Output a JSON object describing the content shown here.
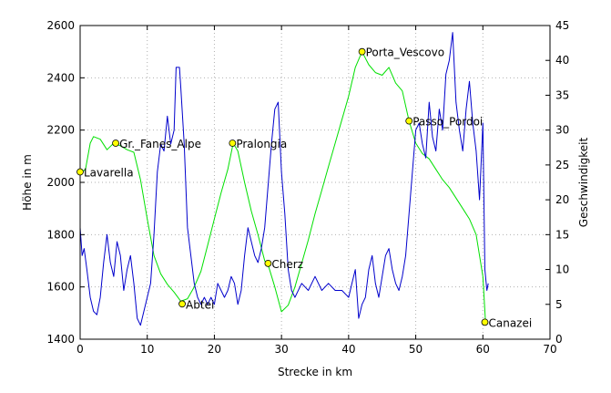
{
  "chart_data": {
    "type": "line",
    "xlabel": "Strecke in km",
    "ylabel_left": "Höhe in m",
    "ylabel_right": "Geschwindigkeit",
    "xlim": [
      0,
      70
    ],
    "ylim_left": [
      1400,
      2600
    ],
    "ylim_right": [
      0,
      45
    ],
    "x_ticks": [
      0,
      10,
      20,
      30,
      40,
      50,
      60,
      70
    ],
    "y_left_ticks": [
      1400,
      1600,
      1800,
      2000,
      2200,
      2400,
      2600
    ],
    "y_right_ticks": [
      0,
      5,
      10,
      15,
      20,
      25,
      30,
      35,
      40,
      45
    ],
    "grid": true,
    "colors": {
      "elevation": "#00e000",
      "speed": "#0000cc",
      "waypoint_fill": "#ffff00",
      "grid": "#b0b0b0"
    },
    "elevation_series": {
      "axis": "left",
      "points": [
        [
          0,
          2035
        ],
        [
          0.8,
          2050
        ],
        [
          1.5,
          2150
        ],
        [
          2,
          2175
        ],
        [
          3,
          2165
        ],
        [
          4,
          2125
        ],
        [
          5,
          2150
        ],
        [
          6,
          2140
        ],
        [
          7,
          2125
        ],
        [
          8,
          2115
        ],
        [
          9,
          2010
        ],
        [
          10,
          1860
        ],
        [
          11,
          1720
        ],
        [
          12,
          1650
        ],
        [
          13,
          1610
        ],
        [
          14,
          1580
        ],
        [
          15,
          1545
        ],
        [
          16,
          1555
        ],
        [
          17,
          1600
        ],
        [
          18,
          1660
        ],
        [
          19,
          1760
        ],
        [
          20,
          1860
        ],
        [
          21,
          1960
        ],
        [
          22,
          2050
        ],
        [
          22.8,
          2150
        ],
        [
          23.5,
          2120
        ],
        [
          24.5,
          2000
        ],
        [
          25.5,
          1890
        ],
        [
          26.5,
          1800
        ],
        [
          27.5,
          1700
        ],
        [
          28,
          1685
        ],
        [
          29,
          1600
        ],
        [
          30,
          1505
        ],
        [
          31,
          1530
        ],
        [
          32,
          1600
        ],
        [
          33,
          1690
        ],
        [
          34,
          1780
        ],
        [
          35,
          1880
        ],
        [
          36,
          1970
        ],
        [
          37,
          2060
        ],
        [
          38,
          2150
        ],
        [
          39,
          2240
        ],
        [
          40,
          2330
        ],
        [
          41,
          2440
        ],
        [
          42,
          2500
        ],
        [
          43,
          2450
        ],
        [
          44,
          2420
        ],
        [
          45,
          2410
        ],
        [
          46,
          2440
        ],
        [
          47,
          2380
        ],
        [
          48,
          2350
        ],
        [
          49,
          2235
        ],
        [
          50,
          2150
        ],
        [
          51,
          2110
        ],
        [
          52,
          2090
        ],
        [
          53,
          2050
        ],
        [
          54,
          2010
        ],
        [
          55,
          1980
        ],
        [
          56,
          1940
        ],
        [
          57,
          1900
        ],
        [
          58,
          1860
        ],
        [
          59,
          1800
        ],
        [
          60,
          1640
        ],
        [
          60.4,
          1465
        ]
      ]
    },
    "speed_series": {
      "axis": "right",
      "points": [
        [
          0,
          16
        ],
        [
          0.3,
          12
        ],
        [
          0.6,
          13
        ],
        [
          1,
          10
        ],
        [
          1.5,
          6
        ],
        [
          2,
          4
        ],
        [
          2.5,
          3.5
        ],
        [
          3,
          6
        ],
        [
          3.5,
          11
        ],
        [
          4,
          15
        ],
        [
          4.5,
          11
        ],
        [
          5,
          9
        ],
        [
          5.5,
          14
        ],
        [
          6,
          12
        ],
        [
          6.5,
          7
        ],
        [
          7,
          10
        ],
        [
          7.5,
          12
        ],
        [
          8,
          8
        ],
        [
          8.5,
          3
        ],
        [
          9,
          2
        ],
        [
          9.5,
          4
        ],
        [
          10,
          6
        ],
        [
          10.5,
          8
        ],
        [
          11,
          15
        ],
        [
          11.5,
          24
        ],
        [
          12,
          28
        ],
        [
          12.5,
          27
        ],
        [
          13,
          32
        ],
        [
          13.5,
          28
        ],
        [
          14,
          30
        ],
        [
          14.3,
          39
        ],
        [
          14.8,
          39
        ],
        [
          15,
          36
        ],
        [
          15.5,
          28
        ],
        [
          16,
          16
        ],
        [
          16.5,
          12
        ],
        [
          17,
          8
        ],
        [
          17.5,
          6
        ],
        [
          18,
          5
        ],
        [
          18.5,
          6
        ],
        [
          19,
          5
        ],
        [
          19.5,
          6
        ],
        [
          20,
          5
        ],
        [
          20.5,
          8
        ],
        [
          21,
          7
        ],
        [
          21.5,
          6
        ],
        [
          22,
          7
        ],
        [
          22.5,
          9
        ],
        [
          23,
          8
        ],
        [
          23.5,
          5
        ],
        [
          24,
          7
        ],
        [
          24.5,
          12
        ],
        [
          25,
          16
        ],
        [
          25.5,
          14
        ],
        [
          26,
          12
        ],
        [
          26.5,
          11
        ],
        [
          27,
          13
        ],
        [
          27.5,
          16
        ],
        [
          28,
          22
        ],
        [
          28.5,
          28
        ],
        [
          29,
          33
        ],
        [
          29.5,
          34
        ],
        [
          30,
          24
        ],
        [
          30.5,
          18
        ],
        [
          31,
          10
        ],
        [
          31.5,
          7
        ],
        [
          32,
          6
        ],
        [
          33,
          8
        ],
        [
          34,
          7
        ],
        [
          35,
          9
        ],
        [
          36,
          7
        ],
        [
          37,
          8
        ],
        [
          38,
          7
        ],
        [
          39,
          7
        ],
        [
          40,
          6
        ],
        [
          40.5,
          8
        ],
        [
          41,
          10
        ],
        [
          41.5,
          3
        ],
        [
          42,
          5
        ],
        [
          42.5,
          6
        ],
        [
          43,
          10
        ],
        [
          43.5,
          12
        ],
        [
          44,
          8
        ],
        [
          44.5,
          6
        ],
        [
          45,
          9
        ],
        [
          45.5,
          12
        ],
        [
          46,
          13
        ],
        [
          46.5,
          10
        ],
        [
          47,
          8
        ],
        [
          47.5,
          7
        ],
        [
          48,
          9
        ],
        [
          48.5,
          12
        ],
        [
          49,
          18
        ],
        [
          49.5,
          24
        ],
        [
          50,
          30
        ],
        [
          50.5,
          31
        ],
        [
          51,
          28
        ],
        [
          51.5,
          26
        ],
        [
          52,
          34
        ],
        [
          52.5,
          29
        ],
        [
          53,
          27
        ],
        [
          53.5,
          33
        ],
        [
          54,
          30
        ],
        [
          54.5,
          38
        ],
        [
          55,
          40
        ],
        [
          55.5,
          44
        ],
        [
          56,
          34
        ],
        [
          56.5,
          30
        ],
        [
          57,
          27
        ],
        [
          57.5,
          33
        ],
        [
          58,
          37
        ],
        [
          58.5,
          31
        ],
        [
          59,
          27
        ],
        [
          59.5,
          20
        ],
        [
          60,
          31
        ],
        [
          60.3,
          10
        ],
        [
          60.6,
          7
        ],
        [
          60.8,
          8
        ]
      ]
    },
    "waypoints": [
      {
        "name": "Lavarella",
        "x": 0,
        "y": 2040
      },
      {
        "name": "Gr._Fanes_Alpe",
        "x": 5.3,
        "y": 2150
      },
      {
        "name": "Abtei",
        "x": 15.2,
        "y": 1535
      },
      {
        "name": "Pralongia",
        "x": 22.7,
        "y": 2150
      },
      {
        "name": "Cherz",
        "x": 28,
        "y": 1690
      },
      {
        "name": "Porta_Vescovo",
        "x": 42,
        "y": 2500
      },
      {
        "name": "Passo_Pordoi",
        "x": 49,
        "y": 2235
      },
      {
        "name": "Canazei",
        "x": 60.3,
        "y": 1465
      }
    ]
  }
}
